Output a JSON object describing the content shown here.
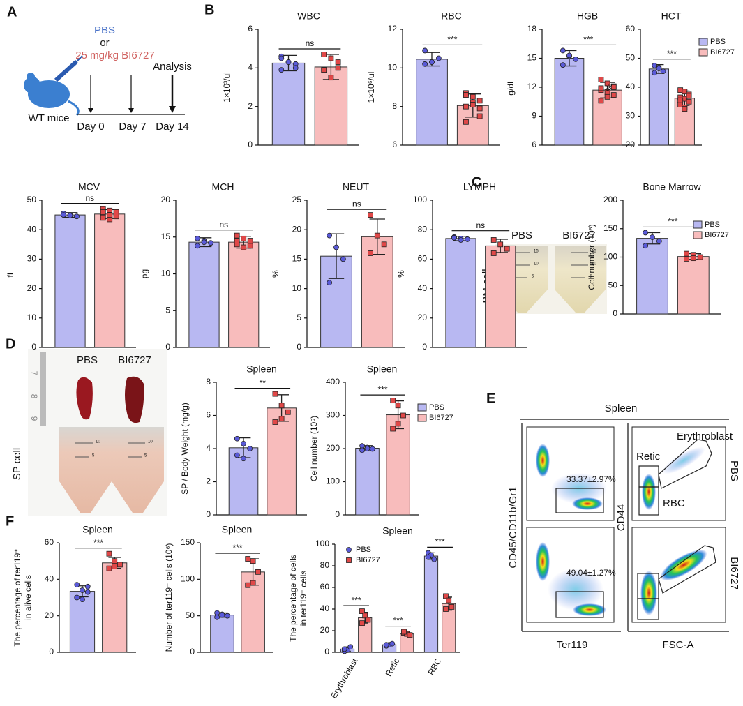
{
  "panel_labels": [
    "A",
    "B",
    "C",
    "D",
    "E",
    "F"
  ],
  "schematic": {
    "treatment": [
      "PBS",
      "or",
      "25 mg/kg BI6727"
    ],
    "analysis": "Analysis",
    "subject": "WT mice",
    "days": [
      "Day 0",
      "Day 7",
      "Day 14"
    ]
  },
  "photos": {
    "bm": {
      "groups": [
        "PBS",
        "BI6727"
      ],
      "label": "BM cell",
      "tube_marks": [
        "15",
        "10",
        "5"
      ]
    },
    "sp": {
      "groups": [
        "PBS",
        "BI6727"
      ],
      "label": "SP cell",
      "tube_marks": [
        "10",
        "5"
      ],
      "ruler": [
        "7",
        "8",
        "9"
      ]
    }
  },
  "flow": {
    "title": "Spleen",
    "y_label_left": "CD45/CD11b/Gr1",
    "y_label_right": "CD44",
    "x_label_left": "Ter119",
    "x_label_right": "FSC-A",
    "rows": [
      "PBS",
      "BI6727"
    ],
    "gate_percent": [
      "33.37±2.97%",
      "49.04±1.27%"
    ],
    "gates": [
      "Erythroblast",
      "Retic",
      "RBC"
    ]
  },
  "chart_data": [
    {
      "type": "bar",
      "title": "WBC",
      "ylabel": "1×10³/ul",
      "ylim": [
        0,
        6
      ],
      "yticks": [
        0,
        2,
        4,
        6
      ],
      "significance": [
        "ns"
      ],
      "series": [
        {
          "color": "#b8b8f2",
          "point_color": "#5a5ad8",
          "marker": "circle",
          "values": [
            4.25
          ],
          "errors": [
            0.4
          ],
          "points": [
            [
              4.6,
              4.3,
              4.2,
              3.9,
              4.3,
              4.0,
              4.5
            ]
          ]
        },
        {
          "color": "#f8bcbc",
          "point_color": "#e04848",
          "marker": "square",
          "values": [
            4.05
          ],
          "errors": [
            0.65
          ],
          "points": [
            [
              4.7,
              4.5,
              4.3,
              3.9,
              3.5,
              4.0
            ]
          ]
        }
      ]
    },
    {
      "type": "bar",
      "title": "RBC",
      "ylabel": "1×10⁶/ul",
      "ylim": [
        6,
        12
      ],
      "yticks": [
        6,
        8,
        10,
        12
      ],
      "significance": [
        "***"
      ],
      "series": [
        {
          "color": "#b8b8f2",
          "point_color": "#5a5ad8",
          "marker": "circle",
          "values": [
            10.45
          ],
          "errors": [
            0.35
          ],
          "points": [
            [
              10.9,
              10.3,
              10.5,
              10.2,
              10.3
            ]
          ]
        },
        {
          "color": "#f8bcbc",
          "point_color": "#e04848",
          "marker": "square",
          "values": [
            8.05
          ],
          "errors": [
            0.6
          ],
          "points": [
            [
              8.7,
              8.5,
              8.3,
              8.0,
              8.2,
              7.5,
              7.2,
              8.1,
              7.9,
              8.6
            ]
          ]
        }
      ]
    },
    {
      "type": "bar",
      "title": "HGB",
      "ylabel": "g/dL",
      "ylim": [
        6,
        18
      ],
      "yticks": [
        6,
        9,
        12,
        15,
        18
      ],
      "significance": [
        "***"
      ],
      "series": [
        {
          "color": "#b8b8f2",
          "point_color": "#5a5ad8",
          "marker": "circle",
          "values": [
            15.0
          ],
          "errors": [
            0.8
          ],
          "points": [
            [
              15.8,
              15.2,
              14.9,
              14.3,
              15.3
            ]
          ]
        },
        {
          "color": "#f8bcbc",
          "point_color": "#e04848",
          "marker": "square",
          "values": [
            11.7
          ],
          "errors": [
            0.8
          ],
          "points": [
            [
              12.8,
              12.4,
              12.1,
              11.7,
              11.5,
              11.2,
              10.6,
              11.0,
              12.0,
              11.9
            ]
          ]
        }
      ]
    },
    {
      "type": "bar",
      "title": "HCT",
      "ylabel": "%",
      "ylim": [
        20,
        60
      ],
      "yticks": [
        20,
        30,
        40,
        50,
        60
      ],
      "significance": [
        "***"
      ],
      "legend": "right",
      "series": [
        {
          "name": "PBS",
          "color": "#b8b8f2",
          "point_color": "#5a5ad8",
          "marker": "circle",
          "values": [
            46.3
          ],
          "errors": [
            1.5
          ],
          "points": [
            [
              47.5,
              46.8,
              45.5,
              45.0,
              46.5
            ]
          ]
        },
        {
          "name": "BI6727",
          "color": "#f8bcbc",
          "point_color": "#e04848",
          "marker": "square",
          "values": [
            36.2
          ],
          "errors": [
            2.5
          ],
          "points": [
            [
              39,
              38.5,
              37.5,
              36.5,
              36,
              35,
              34,
              33,
              37,
              35.5,
              32.5
            ]
          ]
        }
      ]
    },
    {
      "type": "bar",
      "title": "MCV",
      "ylabel": "fL",
      "ylim": [
        0,
        50
      ],
      "yticks": [
        0,
        10,
        20,
        30,
        40,
        50
      ],
      "significance": [
        "ns"
      ],
      "series": [
        {
          "color": "#b8b8f2",
          "point_color": "#5a5ad8",
          "marker": "circle",
          "values": [
            45
          ],
          "errors": [
            0.8
          ],
          "points": [
            [
              45.5,
              45,
              44.5,
              45,
              44.8
            ]
          ]
        },
        {
          "color": "#f8bcbc",
          "point_color": "#e04848",
          "marker": "square",
          "values": [
            45.3
          ],
          "errors": [
            1.5
          ],
          "points": [
            [
              47,
              46.5,
              46,
              45.5,
              45,
              44.5,
              44,
              43.5,
              45.5,
              46,
              45
            ]
          ]
        }
      ]
    },
    {
      "type": "bar",
      "title": "MCH",
      "ylabel": "pg",
      "ylim": [
        0,
        20
      ],
      "yticks": [
        0,
        5,
        10,
        15,
        20
      ],
      "significance": [
        "ns"
      ],
      "series": [
        {
          "color": "#b8b8f2",
          "point_color": "#5a5ad8",
          "marker": "circle",
          "values": [
            14.3
          ],
          "errors": [
            0.6
          ],
          "points": [
            [
              14.8,
              14.5,
              14.2,
              13.8,
              14.3
            ]
          ]
        },
        {
          "color": "#f8bcbc",
          "point_color": "#e04848",
          "marker": "square",
          "values": [
            14.3
          ],
          "errors": [
            0.8
          ],
          "points": [
            [
              15.2,
              14.8,
              14.5,
              14.0,
              13.6,
              13.8,
              14.5
            ]
          ]
        }
      ]
    },
    {
      "type": "bar",
      "title": "NEUT",
      "ylabel": "%",
      "ylim": [
        0,
        25
      ],
      "yticks": [
        0,
        5,
        10,
        15,
        20,
        25
      ],
      "significance": [
        "ns"
      ],
      "series": [
        {
          "color": "#b8b8f2",
          "point_color": "#5a5ad8",
          "marker": "circle",
          "values": [
            15.5
          ],
          "errors": [
            3.8
          ],
          "points": [
            [
              19,
              17,
              15,
              11
            ]
          ]
        },
        {
          "color": "#f8bcbc",
          "point_color": "#e04848",
          "marker": "square",
          "values": [
            18.8
          ],
          "errors": [
            3
          ],
          "points": [
            [
              22.5,
              19,
              17.5,
              16
            ]
          ]
        }
      ]
    },
    {
      "type": "bar",
      "title": "LYMPH",
      "ylabel": "%",
      "ylim": [
        0,
        100
      ],
      "yticks": [
        0,
        20,
        40,
        60,
        80,
        100
      ],
      "significance": [
        "ns"
      ],
      "series": [
        {
          "color": "#b8b8f2",
          "point_color": "#5a5ad8",
          "marker": "circle",
          "values": [
            74
          ],
          "errors": [
            1.5
          ],
          "points": [
            [
              75,
              74,
              73.5,
              74.5,
              73
            ]
          ]
        },
        {
          "color": "#f8bcbc",
          "point_color": "#e04848",
          "marker": "square",
          "values": [
            69
          ],
          "errors": [
            4.5
          ],
          "points": [
            [
              73,
              70,
              67,
              64
            ]
          ]
        }
      ]
    },
    {
      "type": "bar",
      "title": "Bone Marrow",
      "ylabel": "Cell number (10⁶)",
      "ylim": [
        0,
        200
      ],
      "yticks": [
        0,
        50,
        100,
        150,
        200
      ],
      "significance": [
        "***"
      ],
      "legend": "right",
      "series": [
        {
          "name": "PBS",
          "color": "#b8b8f2",
          "point_color": "#5a5ad8",
          "marker": "circle",
          "values": [
            133
          ],
          "errors": [
            10
          ],
          "points": [
            [
              143,
              135,
              128,
              120
            ]
          ]
        },
        {
          "name": "BI6727",
          "color": "#f8bcbc",
          "point_color": "#e04848",
          "marker": "square",
          "values": [
            101
          ],
          "errors": [
            5
          ],
          "points": [
            [
              106,
              104,
              100,
              97,
              98
            ]
          ]
        }
      ]
    },
    {
      "type": "bar",
      "title": "Spleen",
      "ylabel": "SP / Body Weight (mg/g)",
      "ylim": [
        0,
        8
      ],
      "yticks": [
        0,
        2,
        4,
        6,
        8
      ],
      "significance": [
        "**"
      ],
      "series": [
        {
          "color": "#b8b8f2",
          "point_color": "#5a5ad8",
          "marker": "circle",
          "values": [
            4.05
          ],
          "errors": [
            0.6
          ],
          "points": [
            [
              4.6,
              4.3,
              4.0,
              3.6,
              3.4
            ]
          ]
        },
        {
          "color": "#f8bcbc",
          "point_color": "#e04848",
          "marker": "square",
          "values": [
            6.45
          ],
          "errors": [
            0.8
          ],
          "points": [
            [
              7.3,
              6.6,
              6.2,
              5.6,
              5.8
            ]
          ]
        }
      ]
    },
    {
      "type": "bar",
      "title": "Spleen",
      "ylabel": "Cell number (10⁶)",
      "ylim": [
        0,
        400
      ],
      "yticks": [
        0,
        100,
        200,
        300,
        400
      ],
      "significance": [
        "***"
      ],
      "legend": "right",
      "series": [
        {
          "name": "PBS",
          "color": "#b8b8f2",
          "point_color": "#5a5ad8",
          "marker": "circle",
          "values": [
            201
          ],
          "errors": [
            8
          ],
          "points": [
            [
              208,
              203,
              199,
              195,
              200
            ]
          ]
        },
        {
          "name": "BI6727",
          "color": "#f8bcbc",
          "point_color": "#e04848",
          "marker": "square",
          "values": [
            302
          ],
          "errors": [
            42
          ],
          "points": [
            [
              345,
              330,
              300,
              260,
              275
            ]
          ]
        }
      ]
    },
    {
      "type": "bar",
      "title": "Spleen",
      "ylabel": [
        "The percentage of ter119⁺",
        "in alive cells"
      ],
      "ylim": [
        0,
        60
      ],
      "yticks": [
        0,
        20,
        40,
        60
      ],
      "significance": [
        "***"
      ],
      "series": [
        {
          "color": "#b8b8f2",
          "point_color": "#5a5ad8",
          "marker": "circle",
          "values": [
            33.4
          ],
          "errors": [
            3
          ],
          "points": [
            [
              37,
              34,
              33,
              30,
              29,
              36
            ]
          ]
        },
        {
          "color": "#f8bcbc",
          "point_color": "#e04848",
          "marker": "square",
          "values": [
            49
          ],
          "errors": [
            3
          ],
          "points": [
            [
              54,
              50,
              48,
              46,
              47
            ]
          ]
        }
      ]
    },
    {
      "type": "bar",
      "title": "Spleen",
      "ylabel": "Number of ter119⁺ cells (10⁶)",
      "ylim": [
        0,
        150
      ],
      "yticks": [
        0,
        50,
        100,
        150
      ],
      "significance": [
        "***"
      ],
      "series": [
        {
          "color": "#b8b8f2",
          "point_color": "#5a5ad8",
          "marker": "circle",
          "values": [
            51
          ],
          "errors": [
            3
          ],
          "points": [
            [
              54,
              52,
              50,
              48,
              51
            ]
          ]
        },
        {
          "color": "#f8bcbc",
          "point_color": "#e04848",
          "marker": "square",
          "values": [
            110
          ],
          "errors": [
            18
          ],
          "points": [
            [
              128,
              125,
              110,
              92,
              95
            ]
          ]
        }
      ]
    },
    {
      "type": "bar",
      "title": "Spleen",
      "ylabel": [
        "The percentage of cells",
        "in ter119⁺ cells"
      ],
      "categories": [
        "Erythroblast",
        "Retic",
        "RBC"
      ],
      "ylim": [
        0,
        100
      ],
      "yticks": [
        0,
        20,
        40,
        60,
        80,
        100
      ],
      "significance": [
        "***",
        "***",
        "***"
      ],
      "legend": "top-left",
      "legend_symbol": "point",
      "series": [
        {
          "name": "PBS",
          "color": "#b8b8f2",
          "point_color": "#5a5ad8",
          "marker": "circle",
          "values": [
            3,
            7,
            89
          ],
          "errors": [
            2,
            1,
            3
          ],
          "points": [
            [
              1,
              2,
              5,
              3
            ],
            [
              6,
              7,
              8,
              7
            ],
            [
              92,
              90,
              86,
              88
            ]
          ]
        },
        {
          "name": "BI6727",
          "color": "#f8bcbc",
          "point_color": "#e04848",
          "marker": "square",
          "values": [
            32,
            17,
            45
          ],
          "errors": [
            5,
            1.5,
            6
          ],
          "points": [
            [
              38,
              34,
              30,
              27
            ],
            [
              18,
              17,
              16,
              19
            ],
            [
              52,
              48,
              42,
              40
            ]
          ]
        }
      ]
    }
  ]
}
